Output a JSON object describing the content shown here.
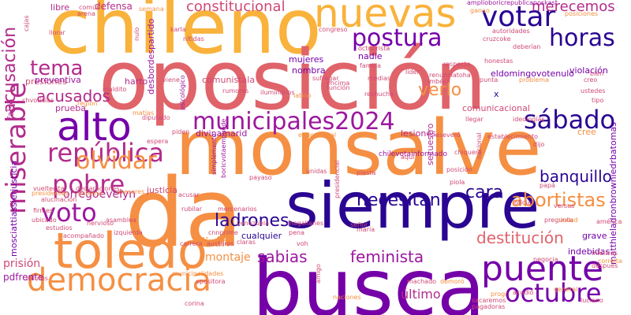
{
  "words": {
    "chileno": "chileno",
    "oposicion": "oposición",
    "monsalve": "monsalve",
    "da": "da",
    "siempre": "siempre",
    "busca": "busca",
    "toledo": "toledo",
    "alto": "alto",
    "nuevas": "nuevas",
    "postura": "postura",
    "votar": "votar",
    "horas": "horas",
    "municipales2024": "municipales2024",
    "sabado": "sábado",
    "republica": "república",
    "tema": "tema",
    "miserable": "miserable",
    "democracia": "democracia",
    "puente": "puente",
    "octubre": "octubre",
    "pobre": "pobre",
    "voto": "voto",
    "olvidar": "olvidar",
    "ladrones": "ladrones",
    "necesitan": "necesitan",
    "cara": "cara",
    "abortistas": "abortistas",
    "sabias": "sabias",
    "feminista": "feminista",
    "destitucion": "destitución",
    "constitucional": "constitucional",
    "merecemos": "merecemos",
    "acusados": "acusados",
    "verlo": "verlo",
    "acusacion": "acusación",
    "banquillo": "banquillo",
    "diran": "dirán",
    "montaje": "montaje",
    "orregoevelyn": "orregoevelyn",
    "ultimo": "último",
    "prision": "prisión",
    "pdfrente": "pdfrente",
    "defensa": "defensa",
    "libre": "libre",
    "falso": "falso",
    "comunistala": "comunistala",
    "justicia": "justicia",
    "presiones": "presiones",
    "preventiva": "preventiva",
    "prueba": "prueba",
    "harto": "harto",
    "lesiones": "lesiones",
    "secuestro": "secuestro",
    "comunicacional": "comunicacional",
    "eldomingovotenulo": "eldomingovotenulo",
    "violacion": "violación",
    "cualquier": "cualquier",
    "grave": "grave",
    "indebidas": "indebidas",
    "mujeres": "mujeres",
    "nombra": "nombra",
    "nadie": "nadie",
    "desbordespartido": "desbordespartido",
    "divinamarid": "divinamarid",
    "mosciattiassierjusticia": "mosciattiassierjusticia",
    "matthieladronbrowniedrbatomas": "matthieladronbrowniedrbatomas",
    "amplioboricrepublicanoskast": "amplioboricrepublicanoskast",
    "chilevotainformado": "chilevotainformado",
    "x": "x",
    "ganao": "ganao",
    "semana": "semana",
    "comun": "común",
    "arena": "arena",
    "karla": "karla",
    "nitidas": "nítidas",
    "congreso": "congreso",
    "autoridades": "autoridades",
    "cruzcoke": "cruzcoke",
    "deberian": "deberían",
    "posiciones": "posiciones",
    "llorar": "llorar",
    "viene": "viene",
    "maldito": "maldito",
    "rumores": "rumores",
    "iluminanos": "iluminanos",
    "latino": "latino",
    "funcion": "función",
    "rechucha": "rechucha",
    "medias": "medias",
    "lider": "líder",
    "renunciatoha": "renunciatoha",
    "imbecil": "imbécil",
    "punta": "punta",
    "respecto": "respecto",
    "problema": "problema",
    "bien": "bien",
    "creo": "creo",
    "ustedes": "ustedes",
    "tipo": "tipo",
    "region": "región",
    "diputado": "diputado",
    "piden": "piden",
    "vueltecita": "vueltecita",
    "declaraciones": "declaraciones",
    "asesores": "asesores",
    "alucinacion": "alucinación",
    "sistema": "sistema",
    "presidentes": "presidentes",
    "firmes": "firmes",
    "ubicado": "ubicado",
    "estudios": "estudios",
    "nervioso": "nervioso",
    "acompanado": "acompañado",
    "valores": "valores",
    "asamblea": "asamblea",
    "izquierda": "izquierda",
    "carrera": "carrera",
    "austeras": "austeras",
    "corina": "corina",
    "municipalidades": "municipalidades",
    "opositora": "opositora",
    "rubilar": "rubilar",
    "acusar": "acusar",
    "mercenarios": "mercenarios",
    "magallanes": "magallanes",
    "senor": "señor",
    "maria": "maría",
    "cnnprime": "cnnprime",
    "claras": "claras",
    "pena": "pena",
    "voh": "voh",
    "machado": "machado",
    "demoro": "demoró",
    "naciones": "naciones",
    "pagadoras": "pagadoras",
    "sacaremos": "sacaremos",
    "acudio": "acudió",
    "general": "general",
    "luciano": "luciano",
    "progr": "progr",
    "negocia": "negocia",
    "pregunta": "pregunta",
    "america": "américa",
    "infelices": "infelices",
    "correita": "correita",
    "despues": "después",
    "ciudad": "ciudad",
    "plasta": "plasta",
    "posicion": "posición",
    "piola": "piola",
    "espera": "espera",
    "payaso": "payaso",
    "oficial": "oficial",
    "versus": "versus",
    "cree": "cree",
    "papa": "papá",
    "dijo": "dijo",
    "chiquero": "chiquero",
    "aquí": "aquí",
    "asevero": "aseveró",
    "nacional": "nacional",
    "llegar": "llegar",
    "ideologias": "ideologías",
    "establecimiento": "establecimiento",
    "familia": "familia",
    "suficiente": "suficiente",
    "encima": "encima",
    "sufragar": "sufragar",
    "octubrista": "octubrista",
    "unidas": "unidas",
    "simplemente": "simplemente",
    "boricvotaempuede": "boricvotaempuede",
    "ojala": "ojalá",
    "matias": "matías",
    "psicologico": "psicológico",
    "nulo": "nulo",
    "cajas": "cajas",
    "chvoticias": "chvoticias",
    "educacional": "educacional",
    "honestas": "honestas",
    "venezuela": "venezuela",
    "medios": "medios",
    "mitos": "mitos",
    "presidencial": "presidencial",
    "amigo": "amigo"
  }
}
